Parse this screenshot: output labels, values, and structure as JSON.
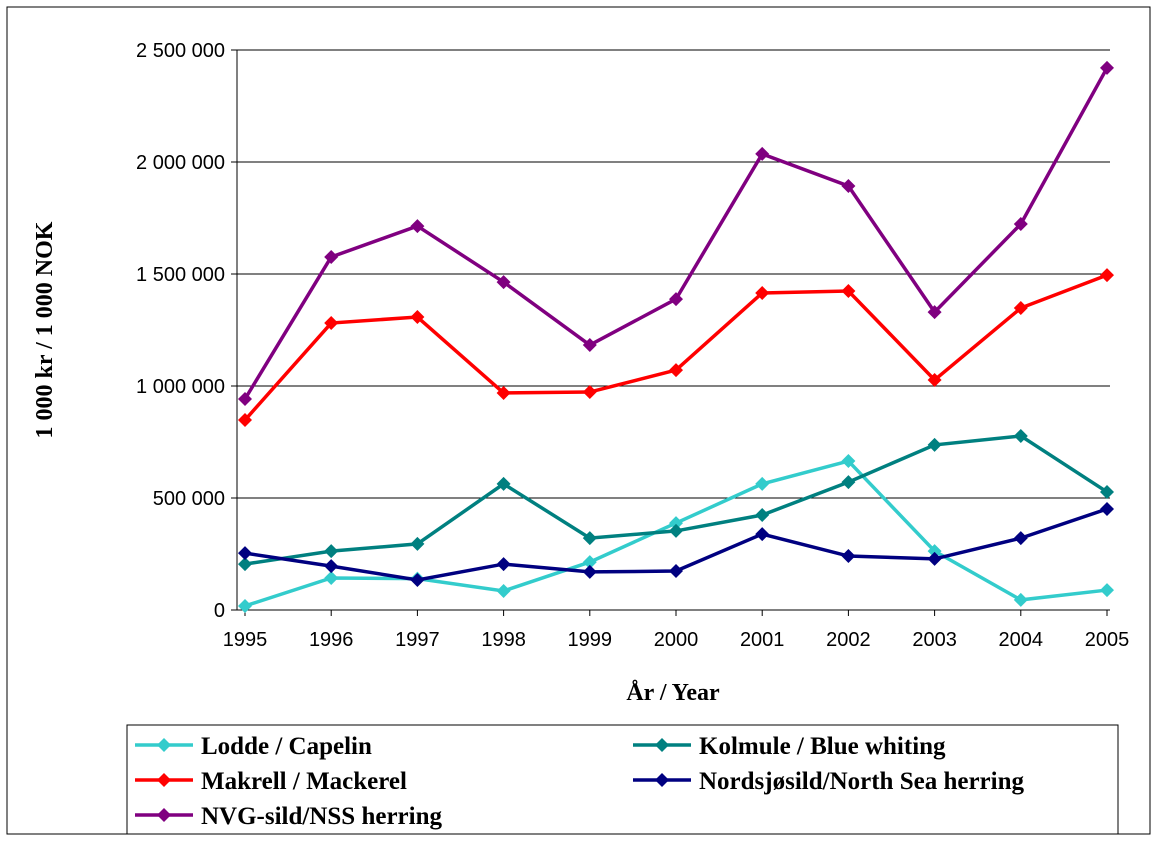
{
  "chart_data": {
    "type": "line",
    "x_label": "År / Year",
    "y_label": "1 000 kr / 1 000 NOK",
    "x": [
      1995,
      1996,
      1997,
      1998,
      1999,
      2000,
      2001,
      2002,
      2003,
      2004,
      2005
    ],
    "xlim": [
      1995,
      2005
    ],
    "ylim": [
      0,
      2500000
    ],
    "yticks": [
      0,
      {
        "value": 500000,
        "label": "500 000"
      },
      {
        "value": 1000000,
        "label": "1 000 000"
      },
      {
        "value": 1500000,
        "label": "1 500 000"
      },
      {
        "value": 2000000,
        "label": "2 000 000"
      },
      {
        "value": 2500000,
        "label": "2 500 000"
      }
    ],
    "grid": true,
    "legend": "bottom",
    "series": [
      {
        "name": "Lodde / Capelin",
        "color": "#33cccc",
        "values": [
          18000,
          143000,
          140000,
          85000,
          214000,
          388000,
          563000,
          665000,
          263000,
          45000,
          89000
        ]
      },
      {
        "name": "Kolmule / Blue whiting",
        "color": "#008080",
        "values": [
          205000,
          263000,
          295000,
          563000,
          321000,
          353000,
          424000,
          571000,
          737000,
          777000,
          527000
        ]
      },
      {
        "name": "Makrell / Mackerel",
        "color": "#ff0000",
        "values": [
          848000,
          1281000,
          1308000,
          969000,
          973000,
          1071000,
          1415000,
          1424000,
          1027000,
          1348000,
          1495000
        ]
      },
      {
        "name": "Nordsjøsild/North Sea herring",
        "color": "#000080",
        "values": [
          254000,
          196000,
          134000,
          205000,
          170000,
          174000,
          339000,
          241000,
          228000,
          321000,
          451000
        ]
      },
      {
        "name": "NVG-sild/NSS herring",
        "color": "#800080",
        "values": [
          942000,
          1576000,
          1714000,
          1464000,
          1183000,
          1388000,
          2036000,
          1893000,
          1330000,
          1723000,
          2420000
        ]
      }
    ]
  }
}
